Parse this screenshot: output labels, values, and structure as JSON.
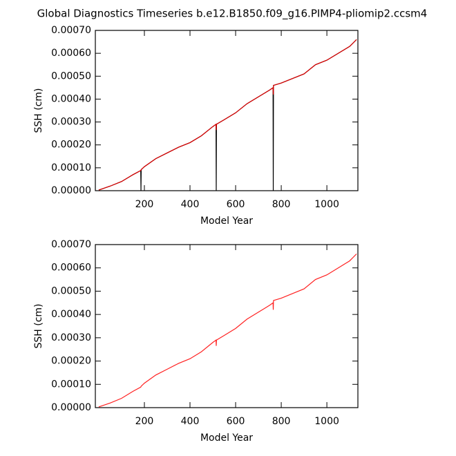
{
  "chart_data": [
    {
      "type": "line",
      "title": "Global Diagnostics Timeseries b.e12.B1850.f09_g16.PIMP4-pliomip2.ccsm4",
      "x_label": "Model Year",
      "y_label": "SSH (cm)",
      "x": [
        0,
        50,
        100,
        150,
        184,
        185,
        186,
        200,
        250,
        300,
        350,
        400,
        450,
        500,
        514,
        515,
        516,
        550,
        600,
        650,
        700,
        750,
        764,
        765,
        766,
        800,
        850,
        900,
        950,
        1000,
        1050,
        1100,
        1130
      ],
      "series": [
        {
          "name": "black",
          "color": "#000000",
          "values": [
            3e-06,
            2e-05,
            4e-05,
            7e-05,
            8.8e-05,
            0,
            9.2e-05,
            0.000105,
            0.00014,
            0.000165,
            0.00019,
            0.00021,
            0.00024,
            0.00028,
            0.00029,
            0,
            0.00029,
            0.00031,
            0.00034,
            0.00038,
            0.00041,
            0.00044,
            0.00045,
            0,
            0.00046,
            0.00047,
            0.00049,
            0.00051,
            0.00055,
            0.00057,
            0.0006,
            0.00063,
            0.00066
          ]
        },
        {
          "name": "red",
          "color": "#e00000",
          "values": [
            3e-06,
            2e-05,
            4e-05,
            7e-05,
            8.8e-05,
            9e-05,
            9.2e-05,
            0.000105,
            0.00014,
            0.000165,
            0.00019,
            0.00021,
            0.00024,
            0.00028,
            0.00029,
            0.000265,
            0.00029,
            0.00031,
            0.00034,
            0.00038,
            0.00041,
            0.00044,
            0.00045,
            0.00042,
            0.00046,
            0.00047,
            0.00049,
            0.00051,
            0.00055,
            0.00057,
            0.0006,
            0.00063,
            0.00066
          ]
        }
      ],
      "xlim": [
        -15,
        1136
      ],
      "xticks": [
        200,
        400,
        600,
        800,
        1000
      ],
      "ylim": [
        0,
        0.0007
      ],
      "yticks": [
        {
          "value": 0,
          "label": "0.00000"
        },
        {
          "value": 0.0001,
          "label": "0.00010"
        },
        {
          "value": 0.0002,
          "label": "0.00020"
        },
        {
          "value": 0.0003,
          "label": "0.00030"
        },
        {
          "value": 0.0004,
          "label": "0.00040"
        },
        {
          "value": 0.0005,
          "label": "0.00050"
        },
        {
          "value": 0.0006,
          "label": "0.00060"
        },
        {
          "value": 0.0007,
          "label": "0.00070"
        }
      ]
    },
    {
      "type": "line",
      "x_label": "Model Year",
      "y_label": "SSH (cm)",
      "x": [
        0,
        50,
        100,
        150,
        184,
        185,
        186,
        200,
        250,
        300,
        350,
        400,
        450,
        500,
        514,
        515,
        516,
        550,
        600,
        650,
        700,
        750,
        764,
        765,
        766,
        800,
        850,
        900,
        950,
        1000,
        1050,
        1100,
        1130
      ],
      "series": [
        {
          "name": "red",
          "color": "#ff2020",
          "values": [
            3e-06,
            2e-05,
            4e-05,
            7e-05,
            8.8e-05,
            9e-05,
            9.2e-05,
            0.000105,
            0.00014,
            0.000165,
            0.00019,
            0.00021,
            0.00024,
            0.00028,
            0.00029,
            0.000265,
            0.00029,
            0.00031,
            0.00034,
            0.00038,
            0.00041,
            0.00044,
            0.00045,
            0.00042,
            0.00046,
            0.00047,
            0.00049,
            0.00051,
            0.00055,
            0.00057,
            0.0006,
            0.00063,
            0.00066
          ]
        }
      ],
      "xlim": [
        -15,
        1136
      ],
      "xticks": [
        200,
        400,
        600,
        800,
        1000
      ],
      "ylim": [
        0,
        0.0007
      ],
      "yticks": [
        {
          "value": 0,
          "label": "0.00000"
        },
        {
          "value": 0.0001,
          "label": "0.00010"
        },
        {
          "value": 0.0002,
          "label": "0.00020"
        },
        {
          "value": 0.0003,
          "label": "0.00030"
        },
        {
          "value": 0.0004,
          "label": "0.00040"
        },
        {
          "value": 0.0005,
          "label": "0.00050"
        },
        {
          "value": 0.0006,
          "label": "0.00060"
        },
        {
          "value": 0.0007,
          "label": "0.00070"
        }
      ]
    }
  ]
}
